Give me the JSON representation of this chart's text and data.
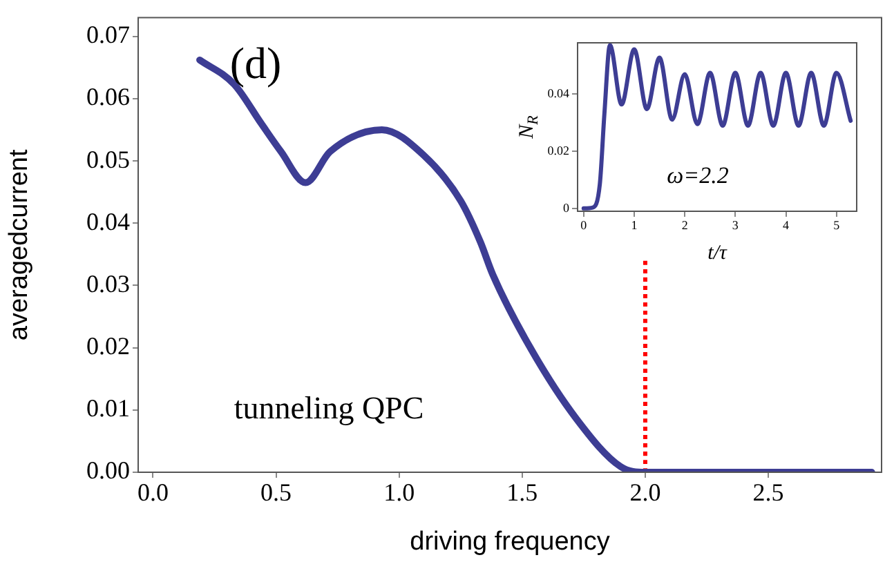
{
  "chart_data": [
    {
      "type": "line",
      "xlabel": "driving frequency",
      "ylabel": "averagedcurrent",
      "annotations": [
        "(d)",
        "tunneling QPC"
      ],
      "marker": "none",
      "grid": false,
      "xlim": [
        -0.06,
        2.96
      ],
      "ylim": [
        0,
        0.073
      ],
      "xticks": [
        {
          "value": 0,
          "label": "0.0"
        },
        {
          "value": 0.5,
          "label": "0.5"
        },
        {
          "value": 1,
          "label": "1.0"
        },
        {
          "value": 1.5,
          "label": "1.5"
        },
        {
          "value": 2,
          "label": "2.0"
        },
        {
          "value": 2.5,
          "label": "2.5"
        }
      ],
      "yticks": [
        {
          "value": 0,
          "label": "0.00"
        },
        {
          "value": 0.01,
          "label": "0.01"
        },
        {
          "value": 0.02,
          "label": "0.02"
        },
        {
          "value": 0.03,
          "label": "0.03"
        },
        {
          "value": 0.04,
          "label": "0.04"
        },
        {
          "value": 0.05,
          "label": "0.05"
        },
        {
          "value": 0.06,
          "label": "0.06"
        },
        {
          "value": 0.07,
          "label": "0.07"
        }
      ],
      "series": [
        {
          "color": "#3d3d94",
          "x": [
            0.19,
            0.33,
            0.44,
            0.52,
            0.62,
            0.72,
            0.93,
            1.1,
            1.25,
            1.33,
            1.38,
            1.53,
            1.72,
            1.9,
            2.0,
            2.5,
            2.92
          ],
          "values": [
            0.0662,
            0.0623,
            0.056,
            0.0515,
            0.0465,
            0.0515,
            0.055,
            0.0509,
            0.0436,
            0.037,
            0.0318,
            0.0202,
            0.0086,
            0.0009,
            0,
            0,
            0
          ]
        },
        {
          "type": "line",
          "color": "#ff0000",
          "line_style": "dotted",
          "x": [
            2,
            2
          ],
          "values": [
            0,
            0.034
          ]
        }
      ]
    },
    {
      "type": "line",
      "xlabel": "t/τ",
      "ylabel": "N$_{R}$",
      "annotations": [
        "ω=2.2"
      ],
      "marker": "none",
      "grid": false,
      "xlim": [
        -0.12,
        5.4
      ],
      "ylim": [
        -0.001,
        0.058
      ],
      "xticks": [
        {
          "value": 0,
          "label": "0"
        },
        1,
        2,
        3,
        4,
        5
      ],
      "yticks": [
        {
          "value": 0,
          "label": "0"
        },
        0.02,
        0.04
      ],
      "series": [
        {
          "color": "#3d3d94",
          "x": [
            0,
            0.18,
            0.32,
            0.41,
            0.52,
            0.75,
            1.0,
            1.25,
            1.5,
            1.75,
            2.0,
            2.25,
            2.5,
            2.75,
            3.0,
            3.25,
            3.5,
            3.75,
            4.0,
            4.25,
            4.5,
            4.75,
            5.0,
            5.28
          ],
          "values": [
            0,
            0.0003,
            0.0085,
            0.033,
            0.0572,
            0.0364,
            0.0557,
            0.0348,
            0.0528,
            0.0311,
            0.047,
            0.0295,
            0.0475,
            0.029,
            0.0475,
            0.029,
            0.0475,
            0.029,
            0.0475,
            0.029,
            0.0475,
            0.029,
            0.0475,
            0.0307
          ]
        }
      ]
    }
  ]
}
